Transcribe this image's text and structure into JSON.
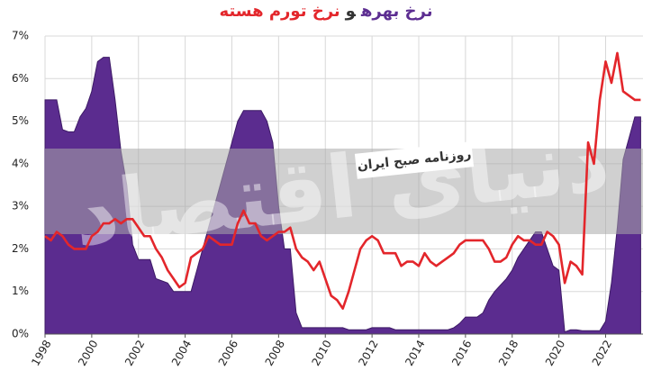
{
  "chart_data": {
    "type": "combo",
    "title": [
      {
        "text": "نرخ بهره",
        "color": "#5c2d91"
      },
      {
        "text": "و",
        "color": "#333333"
      },
      {
        "text": "نرخ تورم هسته",
        "color": "#e3262b"
      }
    ],
    "watermark": "روزنامه صبح ایران",
    "watermark_logo": "دنیای اقتصاد",
    "x": [
      1998,
      1998.25,
      1998.5,
      1998.75,
      1999,
      1999.25,
      1999.5,
      1999.75,
      2000,
      2000.25,
      2000.5,
      2000.75,
      2001,
      2001.25,
      2001.5,
      2001.75,
      2002,
      2002.25,
      2002.5,
      2002.75,
      2003,
      2003.25,
      2003.5,
      2003.75,
      2004,
      2004.25,
      2004.5,
      2004.75,
      2005,
      2005.25,
      2005.5,
      2005.75,
      2006,
      2006.25,
      2006.5,
      2006.75,
      2007,
      2007.25,
      2007.5,
      2007.75,
      2008,
      2008.25,
      2008.5,
      2008.75,
      2009,
      2009.25,
      2009.5,
      2009.75,
      2010,
      2010.25,
      2010.5,
      2010.75,
      2011,
      2011.25,
      2011.5,
      2011.75,
      2012,
      2012.25,
      2012.5,
      2012.75,
      2013,
      2013.25,
      2013.5,
      2013.75,
      2014,
      2014.25,
      2014.5,
      2014.75,
      2015,
      2015.25,
      2015.5,
      2015.75,
      2016,
      2016.25,
      2016.5,
      2016.75,
      2017,
      2017.25,
      2017.5,
      2017.75,
      2018,
      2018.25,
      2018.5,
      2018.75,
      2019,
      2019.25,
      2019.5,
      2019.75,
      2020,
      2020.25,
      2020.5,
      2020.75,
      2021,
      2021.25,
      2021.5,
      2021.75,
      2022,
      2022.25,
      2022.5,
      2022.75,
      2023,
      2023.25,
      2023.5
    ],
    "series": [
      {
        "type": "area",
        "color": "#5b2c8f",
        "values": [
          5.5,
          5.5,
          5.5,
          4.8,
          4.75,
          4.75,
          5.1,
          5.3,
          5.7,
          6.4,
          6.5,
          6.5,
          5.5,
          4.3,
          3.5,
          2.1,
          1.75,
          1.75,
          1.75,
          1.3,
          1.25,
          1.2,
          1.0,
          1.0,
          1.0,
          1.0,
          1.5,
          2.0,
          2.5,
          3.0,
          3.5,
          4.0,
          4.5,
          5.0,
          5.25,
          5.25,
          5.25,
          5.25,
          5.0,
          4.5,
          3.0,
          2.0,
          2.0,
          0.5,
          0.15,
          0.15,
          0.15,
          0.15,
          0.15,
          0.15,
          0.15,
          0.15,
          0.1,
          0.1,
          0.1,
          0.1,
          0.15,
          0.15,
          0.15,
          0.15,
          0.1,
          0.1,
          0.1,
          0.1,
          0.1,
          0.1,
          0.1,
          0.1,
          0.1,
          0.1,
          0.15,
          0.25,
          0.4,
          0.4,
          0.4,
          0.5,
          0.8,
          1.0,
          1.15,
          1.3,
          1.5,
          1.8,
          2.0,
          2.2,
          2.4,
          2.4,
          2.0,
          1.6,
          1.5,
          0.05,
          0.1,
          0.1,
          0.08,
          0.08,
          0.08,
          0.08,
          0.3,
          1.2,
          2.5,
          4.1,
          4.6,
          5.1,
          5.1
        ]
      },
      {
        "type": "line",
        "color": "#e3262b",
        "values": [
          2.3,
          2.2,
          2.4,
          2.3,
          2.1,
          2.0,
          2.0,
          2.0,
          2.3,
          2.4,
          2.6,
          2.6,
          2.7,
          2.6,
          2.7,
          2.7,
          2.5,
          2.3,
          2.3,
          2.0,
          1.8,
          1.5,
          1.3,
          1.1,
          1.2,
          1.8,
          1.9,
          2.0,
          2.3,
          2.2,
          2.1,
          2.1,
          2.1,
          2.6,
          2.9,
          2.6,
          2.6,
          2.3,
          2.2,
          2.3,
          2.4,
          2.4,
          2.5,
          2.0,
          1.8,
          1.7,
          1.5,
          1.7,
          1.3,
          0.9,
          0.8,
          0.6,
          1.0,
          1.5,
          2.0,
          2.2,
          2.3,
          2.2,
          1.9,
          1.9,
          1.9,
          1.6,
          1.7,
          1.7,
          1.6,
          1.9,
          1.7,
          1.6,
          1.7,
          1.8,
          1.9,
          2.1,
          2.2,
          2.2,
          2.2,
          2.2,
          2.0,
          1.7,
          1.7,
          1.8,
          2.1,
          2.3,
          2.2,
          2.2,
          2.1,
          2.1,
          2.4,
          2.3,
          2.1,
          1.2,
          1.7,
          1.6,
          1.4,
          4.5,
          4.0,
          5.5,
          6.4,
          5.9,
          6.6,
          5.7,
          5.6,
          5.5,
          5.5
        ]
      }
    ],
    "xlim": [
      1998,
      2023.6
    ],
    "xticks": [
      1998,
      2000,
      2002,
      2004,
      2006,
      2008,
      2010,
      2012,
      2014,
      2016,
      2018,
      2020,
      2022
    ],
    "ylim": [
      0,
      7
    ],
    "yticks": [
      {
        "value": 0,
        "label": "0%"
      },
      {
        "value": 1,
        "label": "1%"
      },
      {
        "value": 2,
        "label": "2%"
      },
      {
        "value": 3,
        "label": "3%"
      },
      {
        "value": 4,
        "label": "4%"
      },
      {
        "value": 5,
        "label": "5%"
      },
      {
        "value": 6,
        "label": "6%"
      },
      {
        "value": 7,
        "label": "7%"
      }
    ],
    "grid": true
  }
}
